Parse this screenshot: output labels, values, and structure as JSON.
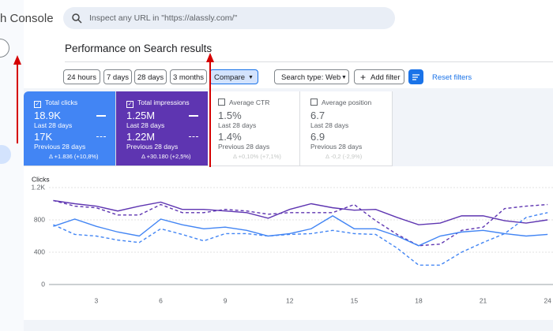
{
  "header": {
    "app_title": "h Console",
    "search_placeholder": "Inspect any URL in \"https://alassly.com/\""
  },
  "page_title": "Performance on Search results",
  "filters": {
    "date_ranges": [
      "24 hours",
      "7 days",
      "28 days",
      "3 months"
    ],
    "compare": "Compare",
    "search_type": "Search type: Web",
    "add_filter": "Add filter",
    "reset": "Reset filters"
  },
  "metrics": [
    {
      "label": "Total clicks",
      "value": "18.9K",
      "period": "Last 28 days",
      "previous_value": "17K",
      "previous_period": "Previous 28 days",
      "delta": "Δ +1.836 (+10,8%)"
    },
    {
      "label": "Total impressions",
      "value": "1.25M",
      "period": "Last 28 days",
      "previous_value": "1.22M",
      "previous_period": "Previous 28 days",
      "delta": "Δ +30.180 (+2,5%)"
    },
    {
      "label": "Average CTR",
      "value": "1.5%",
      "period": "Last 28 days",
      "previous_value": "1.4%",
      "previous_period": "Previous 28 days",
      "delta": "Δ +0,10% (+7,1%)"
    },
    {
      "label": "Average position",
      "value": "6.7",
      "period": "Last 28 days",
      "previous_value": "6.9",
      "previous_period": "Previous 28 days",
      "delta": "Δ -0,2 (-2,9%)"
    }
  ],
  "chart_data": {
    "type": "line",
    "y_label": "Clicks",
    "x": [
      1,
      2,
      3,
      4,
      5,
      6,
      7,
      8,
      9,
      10,
      11,
      12,
      13,
      14,
      15,
      16,
      17,
      18,
      19,
      20,
      21,
      22,
      23,
      24
    ],
    "xlim": [
      0.8,
      24.25
    ],
    "xticks": [
      3,
      6,
      9,
      12,
      15,
      18,
      21,
      24
    ],
    "ylim": [
      0,
      1200
    ],
    "yticks": [
      0,
      400,
      800,
      {
        "value": 1200,
        "label": "1.2K"
      }
    ],
    "grid": true,
    "series": [
      {
        "color": "#5e35b1",
        "dash": false,
        "values": [
          1040,
          1000,
          970,
          910,
          970,
          1020,
          930,
          930,
          910,
          890,
          820,
          930,
          1000,
          950,
          920,
          930,
          830,
          740,
          760,
          850,
          850,
          790,
          760,
          800
        ]
      },
      {
        "color": "#5e35b1",
        "dash": true,
        "values": [
          1040,
          970,
          950,
          860,
          860,
          990,
          890,
          890,
          930,
          910,
          870,
          890,
          890,
          890,
          990,
          790,
          620,
          480,
          500,
          670,
          710,
          940,
          970,
          990
        ]
      },
      {
        "color": "#4285f4",
        "dash": false,
        "values": [
          720,
          810,
          720,
          650,
          600,
          810,
          740,
          690,
          710,
          670,
          600,
          630,
          690,
          850,
          690,
          690,
          600,
          480,
          600,
          650,
          670,
          630,
          600,
          620
        ]
      },
      {
        "color": "#4285f4",
        "dash": true,
        "values": [
          740,
          620,
          600,
          550,
          520,
          690,
          620,
          540,
          630,
          630,
          600,
          620,
          630,
          670,
          630,
          620,
          450,
          240,
          240,
          400,
          520,
          630,
          830,
          890
        ]
      }
    ]
  }
}
